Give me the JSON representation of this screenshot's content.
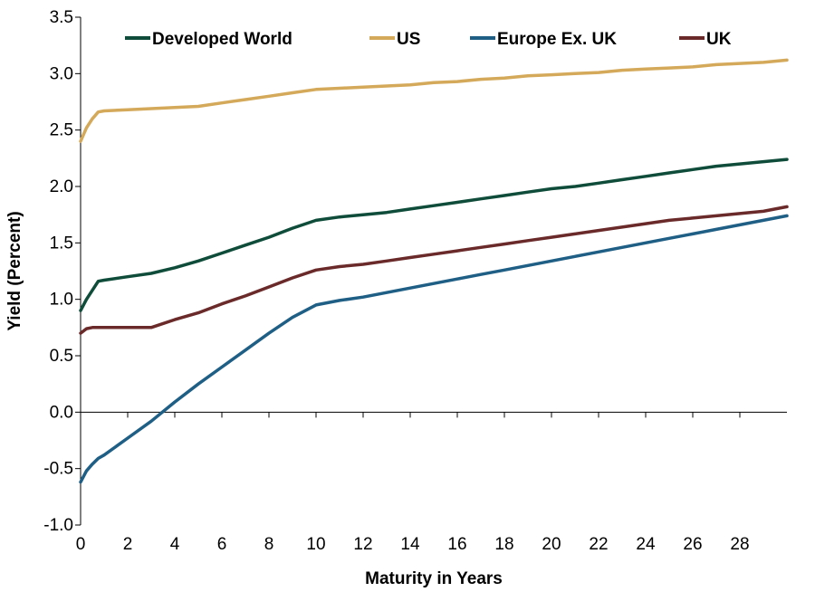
{
  "chart_data": {
    "type": "line",
    "title": "",
    "xlabel": "Maturity in Years",
    "ylabel": "Yield (Percent)",
    "xlim": [
      0,
      30
    ],
    "ylim": [
      -1.0,
      3.5
    ],
    "x_ticks": [
      0,
      2,
      4,
      6,
      8,
      10,
      12,
      14,
      16,
      18,
      20,
      22,
      24,
      26,
      28
    ],
    "x_tick_labels": [
      "0",
      "2",
      "4",
      "6",
      "8",
      "10",
      "12",
      "14",
      "16",
      "18",
      "20",
      "22",
      "24",
      "26",
      "28"
    ],
    "y_ticks": [
      -1.0,
      -0.5,
      0.0,
      0.5,
      1.0,
      1.5,
      2.0,
      2.5,
      3.0,
      3.5
    ],
    "y_tick_labels": [
      "-1.0",
      "-0.5",
      "0.0",
      "0.5",
      "1.0",
      "1.5",
      "2.0",
      "2.5",
      "3.0",
      "3.5"
    ],
    "grid": false,
    "legend_position": "top",
    "series": [
      {
        "name": "Developed World",
        "color": "#0f4d3a",
        "x": [
          0,
          0.25,
          0.5,
          0.75,
          1,
          2,
          3,
          4,
          5,
          6,
          7,
          8,
          9,
          10,
          11,
          12,
          13,
          14,
          15,
          16,
          17,
          18,
          19,
          20,
          21,
          22,
          23,
          24,
          25,
          26,
          27,
          28,
          29,
          30
        ],
        "y": [
          0.9,
          1.0,
          1.08,
          1.16,
          1.17,
          1.2,
          1.23,
          1.28,
          1.34,
          1.41,
          1.48,
          1.55,
          1.63,
          1.7,
          1.73,
          1.75,
          1.77,
          1.8,
          1.83,
          1.86,
          1.89,
          1.92,
          1.95,
          1.98,
          2.0,
          2.03,
          2.06,
          2.09,
          2.12,
          2.15,
          2.18,
          2.2,
          2.22,
          2.24
        ]
      },
      {
        "name": "US",
        "color": "#d4a95a",
        "x": [
          0,
          0.25,
          0.5,
          0.75,
          1,
          2,
          3,
          4,
          5,
          6,
          7,
          8,
          9,
          10,
          11,
          12,
          13,
          14,
          15,
          16,
          17,
          18,
          19,
          20,
          21,
          22,
          23,
          24,
          25,
          26,
          27,
          28,
          29,
          30
        ],
        "y": [
          2.4,
          2.52,
          2.6,
          2.66,
          2.67,
          2.68,
          2.69,
          2.7,
          2.71,
          2.74,
          2.77,
          2.8,
          2.83,
          2.86,
          2.87,
          2.88,
          2.89,
          2.9,
          2.92,
          2.93,
          2.95,
          2.96,
          2.98,
          2.99,
          3.0,
          3.01,
          3.03,
          3.04,
          3.05,
          3.06,
          3.08,
          3.09,
          3.1,
          3.12
        ]
      },
      {
        "name": "Europe Ex. UK",
        "color": "#1f5f86",
        "x": [
          0,
          0.25,
          0.5,
          0.75,
          1,
          2,
          3,
          4,
          5,
          6,
          7,
          8,
          9,
          10,
          11,
          12,
          13,
          14,
          15,
          16,
          17,
          18,
          19,
          20,
          21,
          22,
          23,
          24,
          25,
          26,
          27,
          28,
          29,
          30
        ],
        "y": [
          -0.62,
          -0.52,
          -0.46,
          -0.41,
          -0.38,
          -0.23,
          -0.08,
          0.09,
          0.25,
          0.4,
          0.55,
          0.7,
          0.84,
          0.95,
          0.99,
          1.02,
          1.06,
          1.1,
          1.14,
          1.18,
          1.22,
          1.26,
          1.3,
          1.34,
          1.38,
          1.42,
          1.46,
          1.5,
          1.54,
          1.58,
          1.62,
          1.66,
          1.7,
          1.74
        ]
      },
      {
        "name": "UK",
        "color": "#6b2a2a",
        "x": [
          0,
          0.25,
          0.5,
          0.75,
          1,
          2,
          3,
          4,
          5,
          6,
          7,
          8,
          9,
          10,
          11,
          12,
          13,
          14,
          15,
          16,
          17,
          18,
          19,
          20,
          21,
          22,
          23,
          24,
          25,
          26,
          27,
          28,
          29,
          30
        ],
        "y": [
          0.7,
          0.74,
          0.75,
          0.75,
          0.75,
          0.75,
          0.75,
          0.82,
          0.88,
          0.96,
          1.03,
          1.11,
          1.19,
          1.26,
          1.29,
          1.31,
          1.34,
          1.37,
          1.4,
          1.43,
          1.46,
          1.49,
          1.52,
          1.55,
          1.58,
          1.61,
          1.64,
          1.67,
          1.7,
          1.72,
          1.74,
          1.76,
          1.78,
          1.82
        ]
      }
    ]
  }
}
